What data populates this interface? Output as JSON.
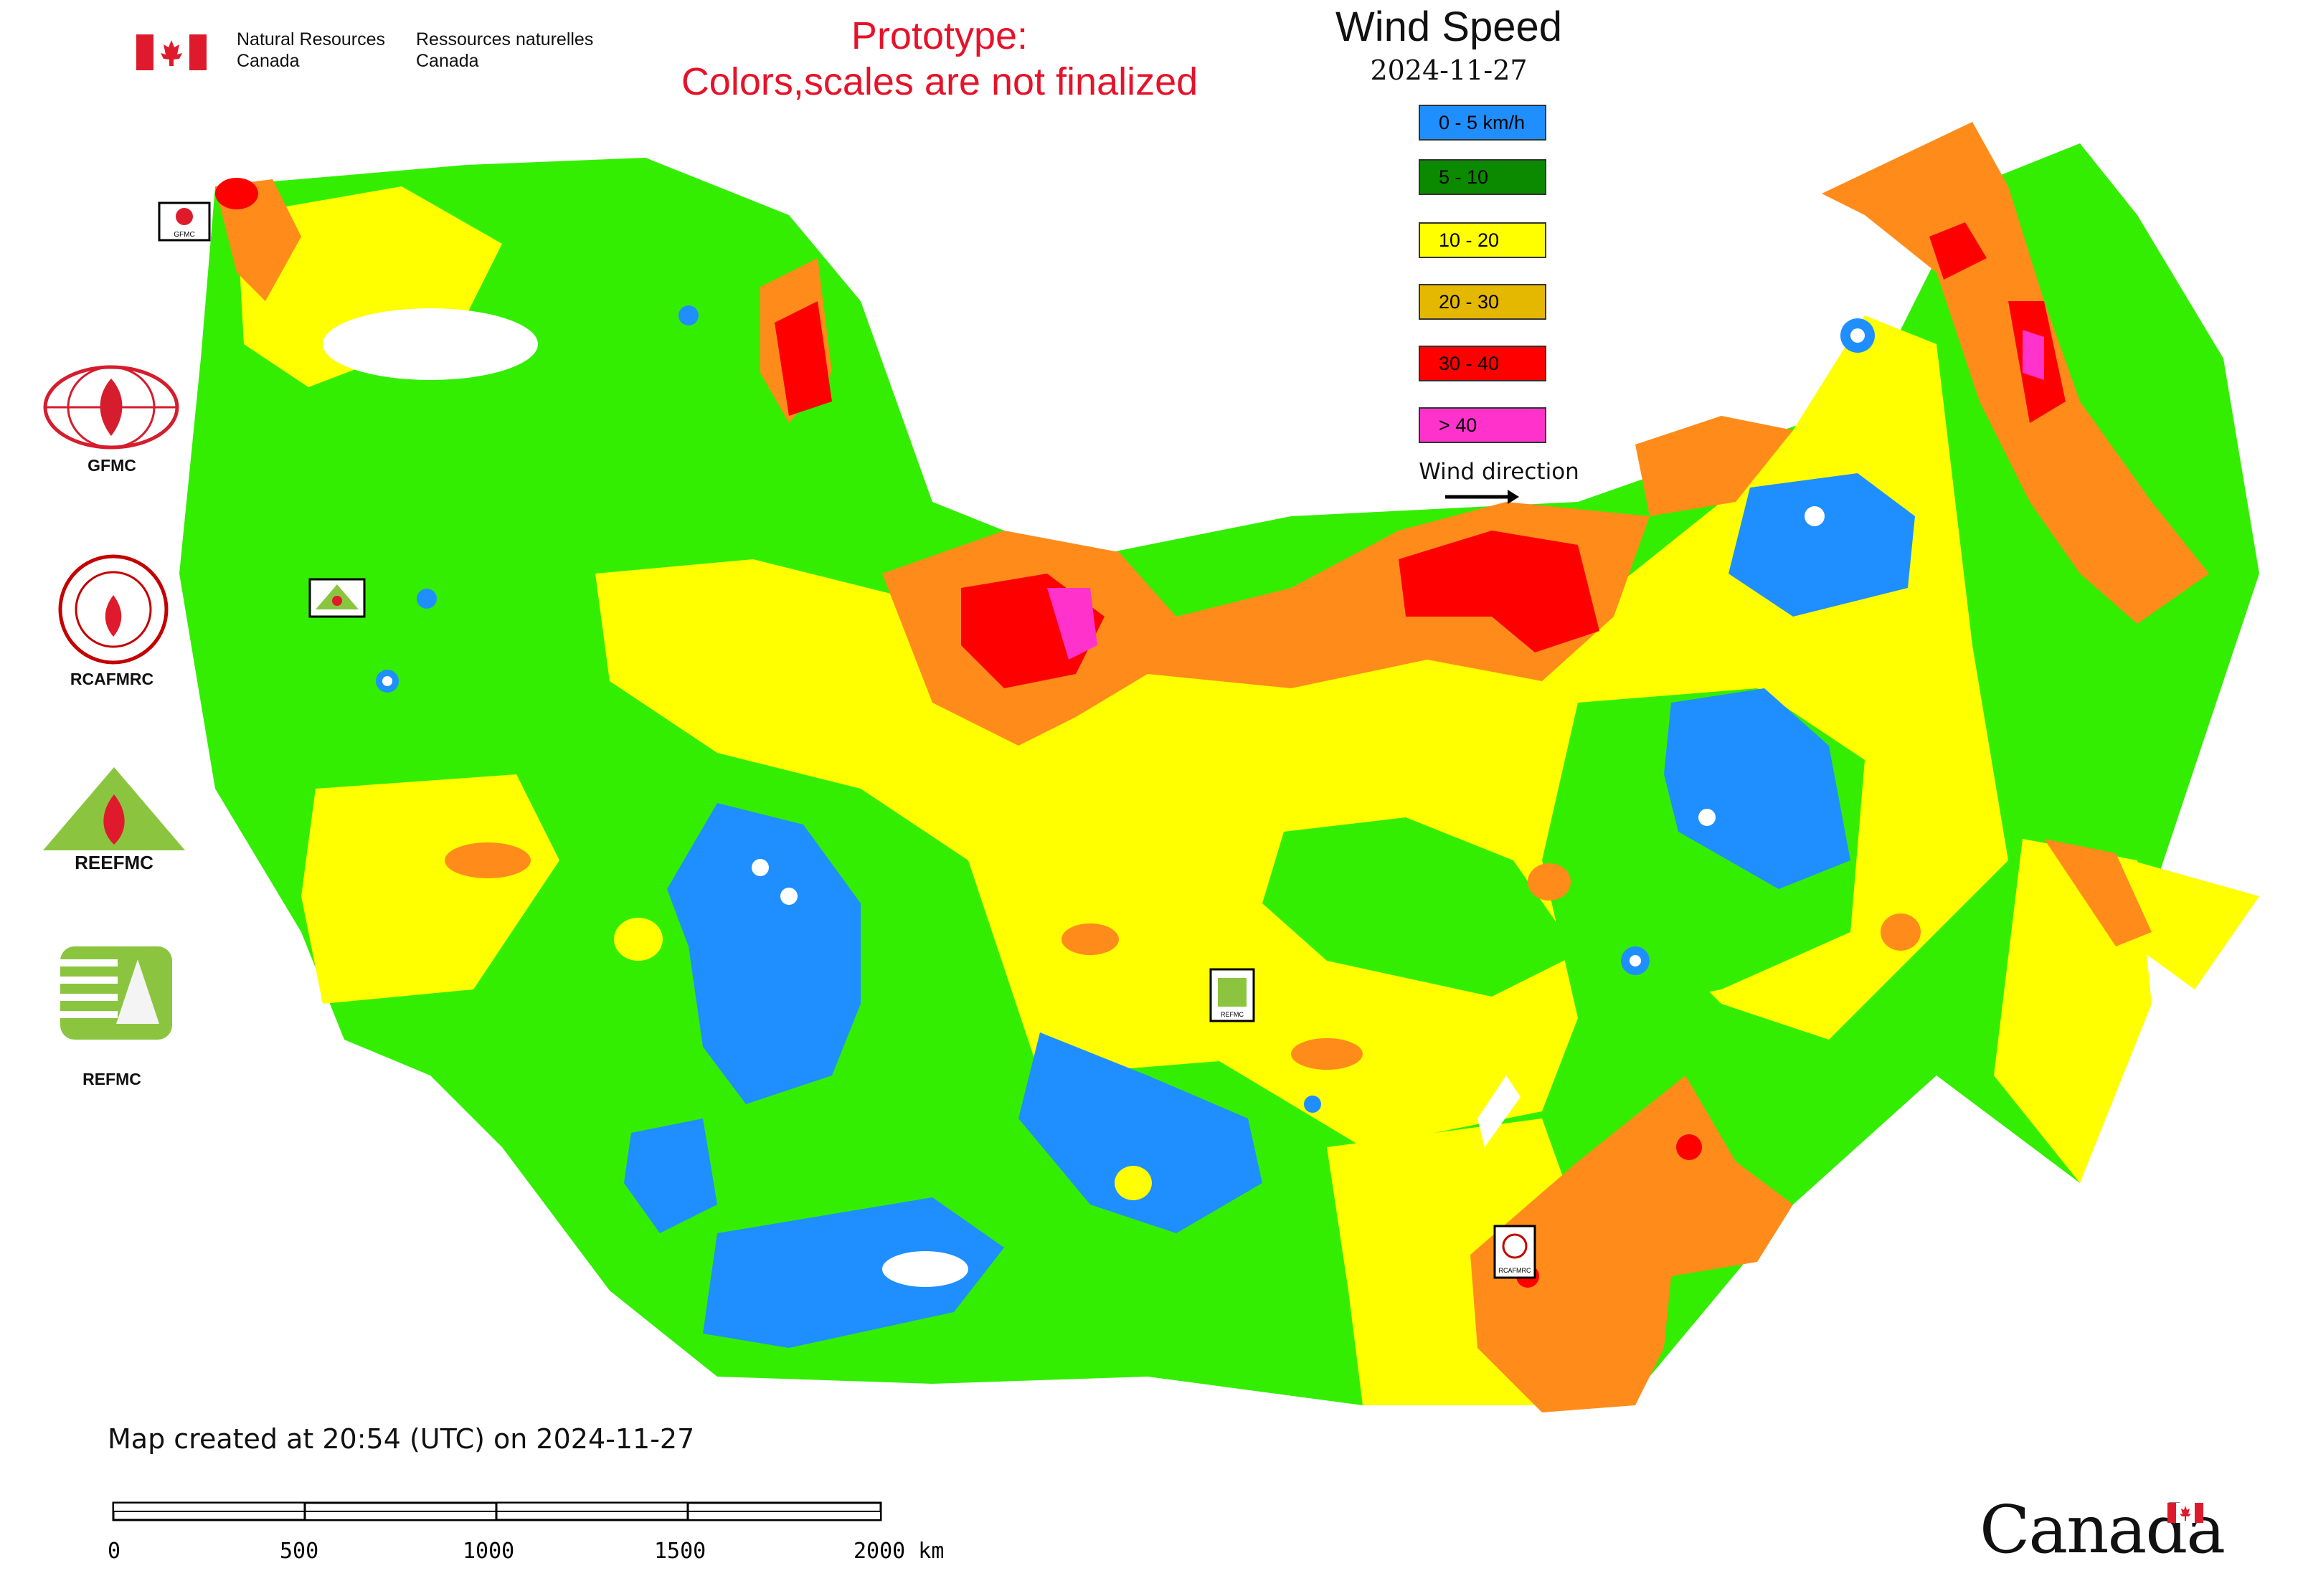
{
  "header": {
    "org_en_line1": "Natural Resources",
    "org_en_line2": "Canada",
    "org_fr_line1": "Ressources naturelles",
    "org_fr_line2": "Canada",
    "prototype_line1": "Prototype:",
    "prototype_line2": "Colors,scales are not finalized"
  },
  "legend": {
    "title": "Wind Speed",
    "date": "2024-11-27",
    "classes": [
      {
        "label": "0 - 5 km/h",
        "color": "#1f8fff"
      },
      {
        "label": "5 - 10",
        "color": "#0b8a00"
      },
      {
        "label": "10 - 20",
        "color": "#ffff00"
      },
      {
        "label": "20 - 30",
        "color": "#e5b800"
      },
      {
        "label": "30 - 40",
        "color": "#ff0000"
      },
      {
        "label": "> 40",
        "color": "#ff33cc"
      }
    ],
    "wind_direction_label": "Wind direction"
  },
  "logos": [
    {
      "name": "GFMC",
      "label": "GFMC"
    },
    {
      "name": "RCAFMRC",
      "label": "RCAFMRC"
    },
    {
      "name": "REEFMC",
      "label": "REEFMC"
    },
    {
      "name": "REFMC",
      "label": "REFMC"
    }
  ],
  "map_markers": {
    "gfmc_small": "GFMC",
    "reefmc_small": "REEFMC",
    "refmc_small": "REFMC",
    "rcafmrc_small": "RCAFMRC"
  },
  "map_colors": {
    "calm": "#1f8fff",
    "light": "#33ee00",
    "moderate": "#ffff00",
    "fresh": "#ff8c1a",
    "strong": "#ff0000",
    "gale": "#ff33cc"
  },
  "footer": {
    "created": "Map created at 20:54 (UTC) on 2024-11-27",
    "scale_ticks": [
      "0",
      "500",
      "1000",
      "1500",
      "2000 km"
    ],
    "wordmark": "Canada"
  }
}
